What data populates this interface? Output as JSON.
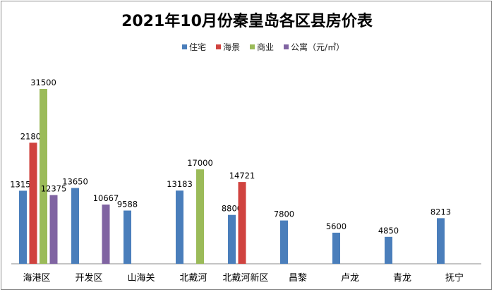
{
  "chart_data": {
    "type": "bar",
    "title": "2021年10月份秦皇岛各区县房价表",
    "categories": [
      "海港区",
      "开发区",
      "山海关",
      "北戴河",
      "北戴河新区",
      "昌黎",
      "卢龙",
      "青龙",
      "抚宁"
    ],
    "series": [
      {
        "name": "住宅",
        "color": "#4a7ebb",
        "values": [
          13157,
          13650,
          9588,
          13183,
          8800,
          7800,
          5600,
          4850,
          8213
        ]
      },
      {
        "name": "海景",
        "color": "#d0433f",
        "values": [
          21800,
          null,
          null,
          null,
          14721,
          null,
          null,
          null,
          null
        ]
      },
      {
        "name": "商业",
        "color": "#9bbb59",
        "values": [
          31500,
          null,
          null,
          17000,
          null,
          null,
          null,
          null,
          null
        ]
      },
      {
        "name": "公寓（元/㎡）",
        "color": "#8064a2",
        "values": [
          12375,
          10667,
          null,
          null,
          null,
          null,
          null,
          null,
          null
        ]
      }
    ],
    "ylim": [
      0,
      31500
    ],
    "grid": false,
    "legend_position": "top"
  }
}
